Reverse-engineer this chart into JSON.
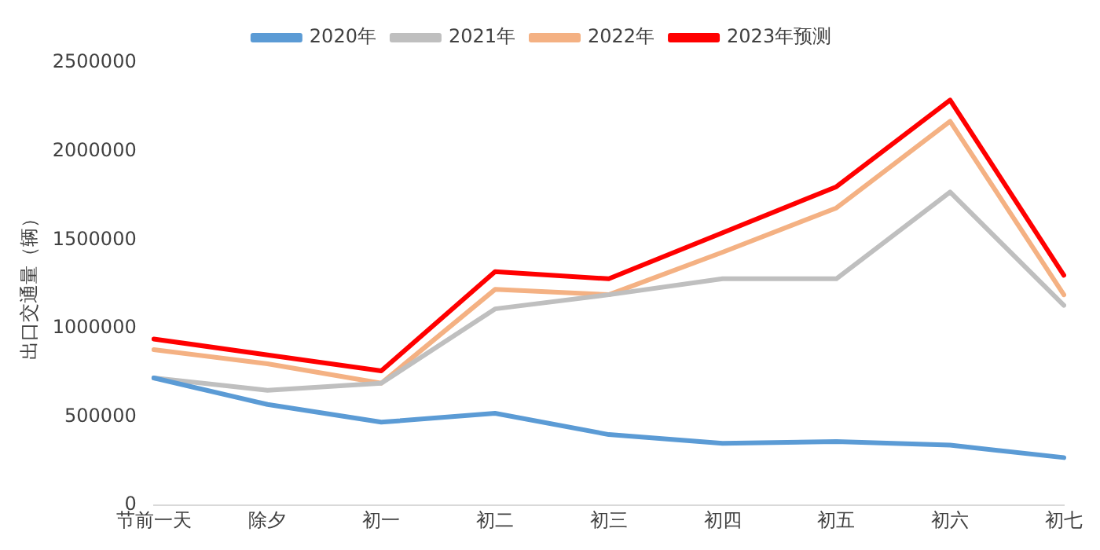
{
  "chart_data": {
    "type": "line",
    "ylabel": "出口交通量（辆）",
    "categories": [
      "节前一天",
      "除夕",
      "初一",
      "初二",
      "初三",
      "初四",
      "初五",
      "初六",
      "初七"
    ],
    "series": [
      {
        "name": "2020年",
        "color": "#5b9bd5",
        "values": [
          720000,
          570000,
          470000,
          520000,
          400000,
          350000,
          360000,
          340000,
          270000
        ]
      },
      {
        "name": "2021年",
        "color": "#bfbfbf",
        "values": [
          720000,
          650000,
          690000,
          1110000,
          1190000,
          1280000,
          1280000,
          1770000,
          1130000
        ]
      },
      {
        "name": "2022年",
        "color": "#f4b183",
        "values": [
          880000,
          800000,
          690000,
          1220000,
          1190000,
          1430000,
          1680000,
          2170000,
          1190000
        ]
      },
      {
        "name": "2023年预测",
        "color": "#ff0000",
        "values": [
          940000,
          850000,
          760000,
          1320000,
          1280000,
          1540000,
          1800000,
          2290000,
          1300000
        ]
      }
    ],
    "ylim": [
      0,
      2500000
    ],
    "yticks": [
      0,
      500000,
      1000000,
      1500000,
      2000000,
      2500000
    ],
    "grid": false,
    "legend": "top",
    "marker": "none",
    "line_style": "solid"
  }
}
